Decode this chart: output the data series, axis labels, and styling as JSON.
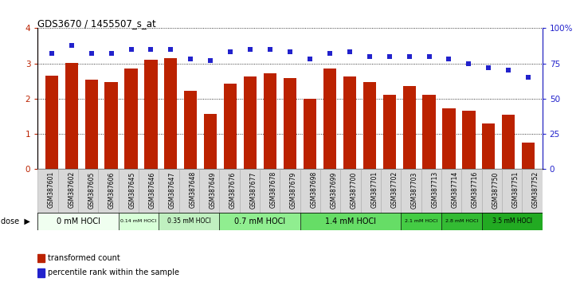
{
  "title": "GDS3670 / 1455507_s_at",
  "samples": [
    "GSM387601",
    "GSM387602",
    "GSM387605",
    "GSM387606",
    "GSM387645",
    "GSM387646",
    "GSM387647",
    "GSM387648",
    "GSM387649",
    "GSM387676",
    "GSM387677",
    "GSM387678",
    "GSM387679",
    "GSM387698",
    "GSM387699",
    "GSM387700",
    "GSM387701",
    "GSM387702",
    "GSM387703",
    "GSM387713",
    "GSM387714",
    "GSM387716",
    "GSM387750",
    "GSM387751",
    "GSM387752"
  ],
  "bar_values": [
    2.65,
    3.02,
    2.53,
    2.48,
    2.85,
    3.1,
    3.15,
    2.22,
    1.57,
    2.43,
    2.63,
    2.73,
    2.58,
    2.0,
    2.85,
    2.63,
    2.48,
    2.12,
    2.35,
    2.1,
    1.73,
    1.65,
    1.3,
    1.55,
    0.75
  ],
  "dot_values": [
    82,
    88,
    82,
    82,
    85,
    85,
    85,
    78,
    77,
    83,
    85,
    85,
    83,
    78,
    82,
    83,
    80,
    80,
    80,
    80,
    78,
    75,
    72,
    70,
    65
  ],
  "dose_groups": [
    {
      "label": "0 mM HOCl",
      "start": 0,
      "end": 4,
      "color": "#f0fff0"
    },
    {
      "label": "0.14 mM HOCl",
      "start": 4,
      "end": 6,
      "color": "#d8ffd8"
    },
    {
      "label": "0.35 mM HOCl",
      "start": 6,
      "end": 9,
      "color": "#c0f0c0"
    },
    {
      "label": "0.7 mM HOCl",
      "start": 9,
      "end": 13,
      "color": "#90ee90"
    },
    {
      "label": "1.4 mM HOCl",
      "start": 13,
      "end": 18,
      "color": "#66dd66"
    },
    {
      "label": "2.1 mM HOCl",
      "start": 18,
      "end": 20,
      "color": "#44cc44"
    },
    {
      "label": "2.8 mM HOCl",
      "start": 20,
      "end": 22,
      "color": "#33bb33"
    },
    {
      "label": "3.5 mM HOCl",
      "start": 22,
      "end": 25,
      "color": "#22aa22"
    }
  ],
  "bar_color": "#bb2200",
  "dot_color": "#2222cc",
  "ylim_left": [
    0,
    4
  ],
  "ylim_right": [
    0,
    100
  ],
  "yticks_left": [
    0,
    1,
    2,
    3,
    4
  ],
  "yticks_right": [
    0,
    25,
    50,
    75,
    100
  ],
  "ytick_labels_right": [
    "0",
    "25",
    "50",
    "75",
    "100%"
  ]
}
